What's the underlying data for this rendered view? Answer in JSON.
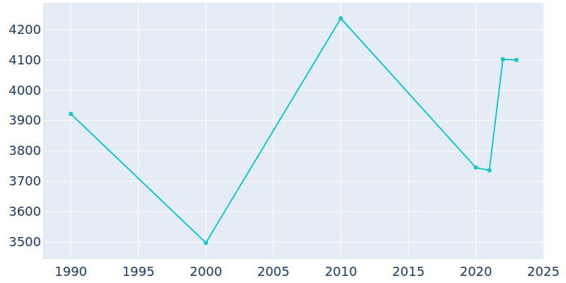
{
  "chart_data": {
    "type": "line",
    "x": [
      1990,
      2000,
      2010,
      2020,
      2021,
      2022,
      2023
    ],
    "values": [
      3922,
      3497,
      4237,
      3745,
      3736,
      4102,
      4100
    ],
    "color": "#17c7c7",
    "marker": "circle",
    "xlim": [
      1988,
      2025
    ],
    "xticks": [
      1990,
      1995,
      2000,
      2005,
      2010,
      2015,
      2020,
      2025
    ],
    "ylim": [
      3446,
      4286
    ],
    "yticks": [
      3500,
      3600,
      3700,
      3800,
      3900,
      4000,
      4100,
      4200
    ],
    "grid": true
  }
}
